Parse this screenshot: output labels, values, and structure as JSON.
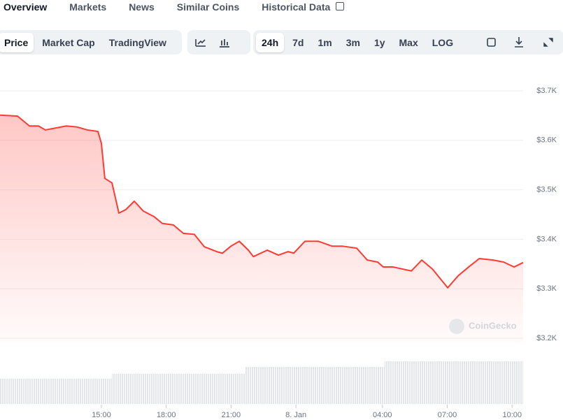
{
  "tabs": [
    "Overview",
    "Markets",
    "News",
    "Similar Coins",
    "Historical Data"
  ],
  "chart_tabs": [
    "Price",
    "Market Cap",
    "TradingView"
  ],
  "ranges": [
    "24h",
    "7d",
    "1m",
    "3m",
    "1y",
    "Max",
    "LOG"
  ],
  "chart_data": {
    "type": "line",
    "color": "#ff3a33",
    "grid": true,
    "watermark": "CoinGecko",
    "x": [
      10.31,
      11.12,
      11.67,
      12.09,
      12.41,
      13.38,
      13.87,
      14.35,
      14.84,
      15.0,
      15.16,
      15.49,
      15.81,
      16.13,
      16.52,
      16.94,
      17.43,
      17.82,
      18.33,
      18.79,
      19.3,
      19.76,
      20.34,
      20.6,
      20.99,
      21.38,
      21.8,
      22.03,
      22.67,
      23.19,
      23.64,
      23.9,
      24.42,
      25.03,
      25.68,
      26.17,
      26.81,
      27.3,
      27.78,
      28.04,
      28.5,
      29.34,
      29.82,
      30.31,
      30.76,
      31.02,
      31.5,
      31.99,
      32.48,
      33.12,
      33.61,
      34.09,
      34.51
    ],
    "values": [
      3651,
      3649,
      3629,
      3629,
      3621,
      3629,
      3627,
      3621,
      3618,
      3594,
      3523,
      3514,
      3453,
      3460,
      3477,
      3457,
      3446,
      3432,
      3429,
      3412,
      3410,
      3385,
      3375,
      3372,
      3386,
      3396,
      3378,
      3365,
      3378,
      3368,
      3375,
      3372,
      3396,
      3396,
      3386,
      3386,
      3382,
      3358,
      3354,
      3344,
      3344,
      3336,
      3358,
      3340,
      3316,
      3302,
      3326,
      3344,
      3361,
      3358,
      3354,
      3344,
      3353
    ],
    "xlim": [
      10.31,
      34.51
    ],
    "xticks": [
      {
        "value": 15,
        "label": "15:00"
      },
      {
        "value": 18,
        "label": "18:00"
      },
      {
        "value": 21,
        "label": "21:00"
      },
      {
        "value": 24,
        "label": "8. Jan"
      },
      {
        "value": 28,
        "label": "04:00"
      },
      {
        "value": 31,
        "label": "07:00"
      },
      {
        "value": 34,
        "label": "10:00"
      }
    ],
    "ylim": [
      3200,
      3700
    ],
    "yticks": [
      {
        "value": 3200,
        "label": "$3.2K"
      },
      {
        "value": 3300,
        "label": "$3.3K"
      },
      {
        "value": 3400,
        "label": "$3.4K"
      },
      {
        "value": 3500,
        "label": "$3.5K"
      },
      {
        "value": 3600,
        "label": "$3.6K"
      },
      {
        "value": 3700,
        "label": "$3.7K"
      }
    ]
  }
}
